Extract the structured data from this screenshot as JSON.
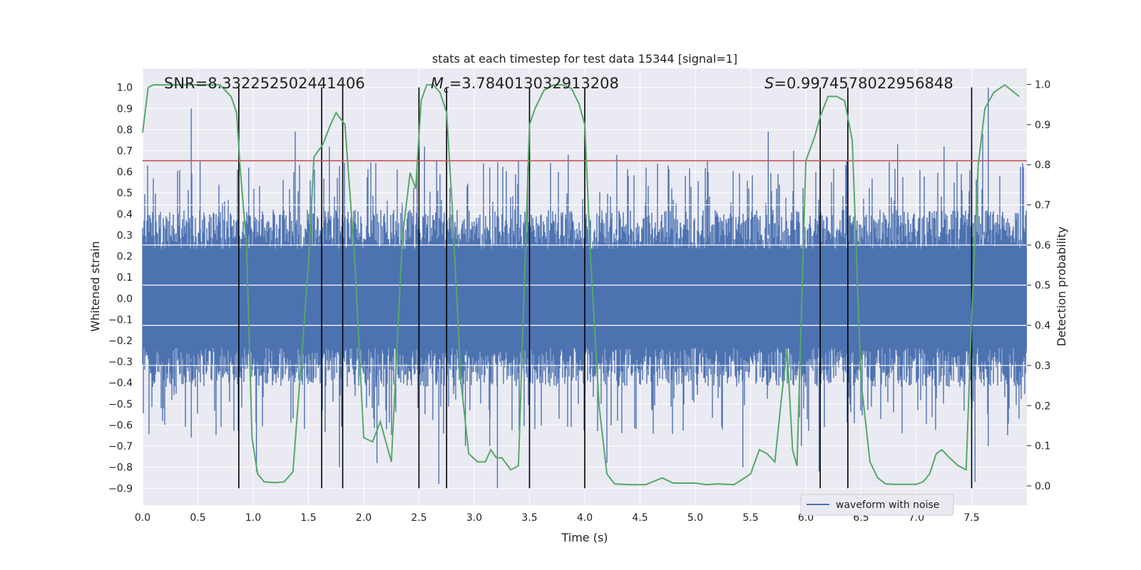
{
  "chart_data": {
    "type": "line",
    "title": "stats at each timestep for test data 15344 [signal=1]",
    "xlabel": "Time (s)",
    "ylabel": "Whitened strain",
    "y2label": "Detection probability",
    "xlim": [
      0,
      8
    ],
    "ylim": [
      -0.98,
      1.09
    ],
    "y2lim": [
      -0.048,
      1.04
    ],
    "xticks": [
      "0.0",
      "0.5",
      "1.0",
      "1.5",
      "2.0",
      "2.5",
      "3.0",
      "3.5",
      "4.0",
      "4.5",
      "5.0",
      "5.5",
      "6.0",
      "6.5",
      "7.0",
      "7.5"
    ],
    "yticks": [
      "-0.9",
      "-0.8",
      "-0.7",
      "-0.6",
      "-0.5",
      "-0.4",
      "-0.3",
      "-0.2",
      "-0.1",
      "0.0",
      "0.1",
      "0.2",
      "0.3",
      "0.4",
      "0.5",
      "0.6",
      "0.7",
      "0.8",
      "0.9",
      "1.0"
    ],
    "y2ticks": [
      "0.0",
      "0.1",
      "0.2",
      "0.3",
      "0.4",
      "0.5",
      "0.6",
      "0.7",
      "0.8",
      "0.9",
      "1.0"
    ],
    "grid": true,
    "legend": {
      "position": "lower-right",
      "entries": [
        "waveform with noise"
      ]
    },
    "annotations": {
      "snr": "SNR=8.332252502441406",
      "mc_symbol": "M",
      "mc_sub": "c",
      "mc_value": "=3.784013032913208",
      "s_symbol": "S",
      "s_value": "=0.9974578022956848"
    },
    "threshold": 0.81,
    "vlines": [
      0.87,
      1.62,
      1.81,
      2.5,
      2.75,
      3.5,
      4.0,
      6.13,
      6.38,
      7.5
    ],
    "vline_range": [
      -0.9,
      1.0
    ],
    "waveform": {
      "name": "waveform with noise",
      "color": "#4c72b0",
      "envelope_upper": 0.42,
      "envelope_lower": -0.42,
      "spikes_up": [
        [
          0.44,
          0.9
        ],
        [
          1.38,
          0.79
        ],
        [
          1.69,
          0.72
        ],
        [
          2.55,
          0.72
        ],
        [
          2.66,
          0.65
        ],
        [
          3.14,
          0.62
        ],
        [
          3.4,
          0.65
        ],
        [
          4.29,
          0.68
        ],
        [
          5.66,
          0.79
        ],
        [
          6.83,
          0.73
        ],
        [
          7.65,
          1.0
        ],
        [
          7.6,
          0.78
        ],
        [
          6.37,
          0.65
        ],
        [
          0.52,
          0.65
        ],
        [
          0.96,
          0.62
        ],
        [
          3.85,
          0.68
        ],
        [
          5.89,
          0.7
        ],
        [
          7.25,
          0.72
        ]
      ],
      "spikes_down": [
        [
          1.03,
          -0.82
        ],
        [
          1.78,
          -0.8
        ],
        [
          2.12,
          -0.78
        ],
        [
          2.68,
          -0.88
        ],
        [
          3.21,
          -0.9
        ],
        [
          4.2,
          -0.78
        ],
        [
          5.43,
          -0.8
        ],
        [
          5.96,
          -0.7
        ],
        [
          6.12,
          -0.82
        ],
        [
          7.53,
          -0.87
        ],
        [
          7.65,
          -0.7
        ],
        [
          0.44,
          -0.66
        ],
        [
          2.92,
          -0.7
        ],
        [
          3.14,
          -0.7
        ]
      ]
    },
    "probability": {
      "color": "#55a868",
      "x": [
        0.0,
        0.05,
        0.1,
        0.3,
        0.5,
        0.7,
        0.8,
        0.85,
        0.88,
        0.94,
        0.99,
        1.04,
        1.1,
        1.2,
        1.28,
        1.36,
        1.5,
        1.55,
        1.63,
        1.7,
        1.75,
        1.83,
        1.92,
        2.0,
        2.08,
        2.15,
        2.25,
        2.35,
        2.42,
        2.47,
        2.52,
        2.57,
        2.63,
        2.69,
        2.75,
        2.8,
        2.88,
        2.95,
        3.03,
        3.1,
        3.15,
        3.2,
        3.25,
        3.33,
        3.4,
        3.5,
        3.55,
        3.63,
        3.72,
        3.8,
        3.88,
        3.95,
        4.0,
        4.05,
        4.13,
        4.2,
        4.27,
        4.4,
        4.55,
        4.7,
        4.8,
        5.0,
        5.1,
        5.2,
        5.35,
        5.5,
        5.58,
        5.65,
        5.72,
        5.78,
        5.83,
        5.88,
        5.92,
        6.0,
        6.08,
        6.13,
        6.2,
        6.28,
        6.35,
        6.42,
        6.5,
        6.58,
        6.65,
        6.72,
        6.8,
        7.0,
        7.06,
        7.12,
        7.18,
        7.23,
        7.3,
        7.38,
        7.45,
        7.5,
        7.56,
        7.62,
        7.7,
        7.8,
        7.93
      ],
      "y": [
        0.88,
        0.993,
        0.999,
        0.999,
        0.999,
        0.999,
        0.97,
        0.93,
        0.8,
        0.6,
        0.12,
        0.03,
        0.01,
        0.008,
        0.01,
        0.035,
        0.55,
        0.82,
        0.85,
        0.9,
        0.93,
        0.9,
        0.56,
        0.12,
        0.11,
        0.16,
        0.06,
        0.62,
        0.78,
        0.74,
        0.96,
        0.999,
        0.999,
        0.98,
        0.93,
        0.7,
        0.26,
        0.08,
        0.06,
        0.06,
        0.09,
        0.07,
        0.07,
        0.04,
        0.05,
        0.9,
        0.94,
        0.985,
        0.999,
        0.999,
        0.99,
        0.95,
        0.9,
        0.58,
        0.2,
        0.03,
        0.005,
        0.003,
        0.003,
        0.02,
        0.007,
        0.007,
        0.003,
        0.005,
        0.003,
        0.03,
        0.09,
        0.08,
        0.06,
        0.22,
        0.34,
        0.09,
        0.05,
        0.81,
        0.87,
        0.92,
        0.97,
        0.97,
        0.96,
        0.86,
        0.26,
        0.06,
        0.02,
        0.005,
        0.004,
        0.004,
        0.01,
        0.03,
        0.08,
        0.09,
        0.07,
        0.05,
        0.04,
        0.42,
        0.8,
        0.94,
        0.98,
        0.999,
        0.97
      ]
    }
  }
}
